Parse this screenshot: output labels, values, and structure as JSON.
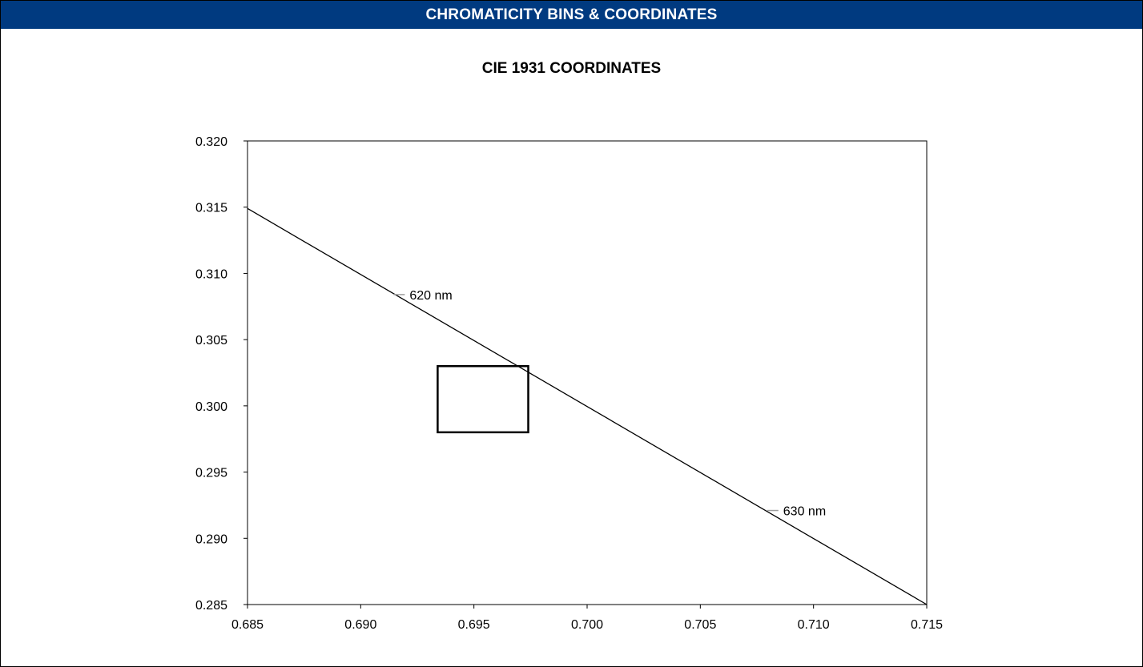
{
  "header": {
    "title": "CHROMATICITY BINS & COORDINATES"
  },
  "chart_data": {
    "type": "scatter",
    "title": "CIE 1931 COORDINATES",
    "xlabel": "",
    "ylabel": "",
    "xlim": [
      0.685,
      0.715
    ],
    "ylim": [
      0.285,
      0.32
    ],
    "x_ticks": [
      "0.685",
      "0.690",
      "0.695",
      "0.700",
      "0.705",
      "0.710",
      "0.715"
    ],
    "y_ticks": [
      "0.320",
      "0.315",
      "0.310",
      "0.305",
      "0.300",
      "0.295",
      "0.290",
      "0.285"
    ],
    "grid": false,
    "series": [
      {
        "type": "line",
        "points": [
          [
            0.685,
            0.3149
          ],
          [
            0.715,
            0.285
          ]
        ]
      },
      {
        "type": "polygon",
        "points": [
          [
            0.6934,
            0.303
          ],
          [
            0.6974,
            0.303
          ],
          [
            0.6974,
            0.298
          ],
          [
            0.6934,
            0.298
          ]
        ]
      }
    ],
    "annotations": [
      {
        "text": "620 nm",
        "x": 0.6917,
        "y": 0.3084
      },
      {
        "text": "630 nm",
        "x": 0.7082,
        "y": 0.2921
      }
    ],
    "colors": {
      "line": "#000000",
      "box": "#000000",
      "marker_tick": "#9e9e9e",
      "banner_bg": "#003a80",
      "banner_text": "#ffffff"
    }
  }
}
